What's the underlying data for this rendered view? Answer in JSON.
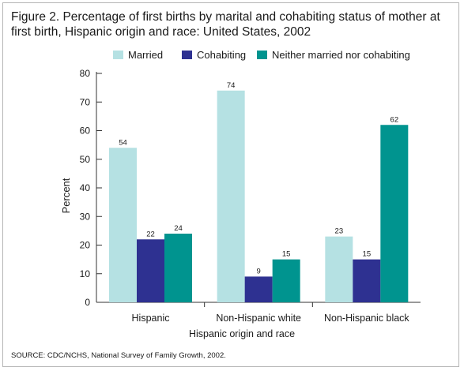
{
  "figure": {
    "title": "Figure 2. Percentage of first births by marital and cohabiting status of mother at first birth, Hispanic origin and race: United States, 2002",
    "source": "SOURCE: CDC/NCHS, National Survey of Family Growth, 2002."
  },
  "colors": {
    "married": "#b5e1e3",
    "cohabiting": "#2e3191",
    "neither": "#00948f"
  },
  "chart_data": {
    "type": "bar",
    "title": "Figure 2. Percentage of first births by marital and cohabiting status of mother at first birth, Hispanic origin and race: United States, 2002",
    "categories": [
      "Hispanic",
      "Non-Hispanic white",
      "Non-Hispanic black"
    ],
    "series": [
      {
        "name": "Married",
        "values": [
          54,
          74,
          23
        ],
        "color": "#b5e1e3"
      },
      {
        "name": "Cohabiting",
        "values": [
          22,
          9,
          15
        ],
        "color": "#2e3191"
      },
      {
        "name": "Neither married nor cohabiting",
        "values": [
          24,
          15,
          62
        ],
        "color": "#00948f"
      }
    ],
    "xlabel": "Hispanic origin and race",
    "ylabel": "Percent",
    "ylim": [
      0,
      80
    ],
    "yticks": [
      0,
      10,
      20,
      30,
      40,
      50,
      60,
      70,
      80
    ],
    "legend": "top",
    "grid": false,
    "data_labels": true
  }
}
